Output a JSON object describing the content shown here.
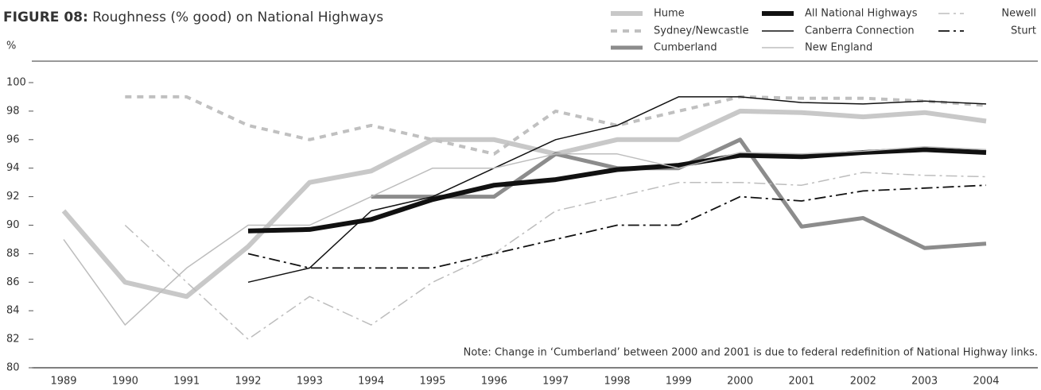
{
  "chart_data": {
    "type": "line",
    "figure_label": "FIGURE 08:",
    "title": "Roughness (% good) on National Highways",
    "y_label": "%",
    "annotation": "Note: Change in ‘Cumberland’ between 2000 and 2001 is due to federal redefinition of National Highway links.",
    "categories": [
      "1989",
      "1990",
      "1991",
      "1992",
      "1993",
      "1994",
      "1995",
      "1996",
      "1997",
      "1998",
      "1999",
      "2000",
      "2001",
      "2002",
      "2003",
      "2004"
    ],
    "ylim": [
      80,
      100
    ],
    "yticks": [
      80,
      82,
      84,
      86,
      88,
      90,
      92,
      94,
      96,
      98,
      100
    ],
    "grid": false,
    "legend": "top-right",
    "series": [
      {
        "name": "Hume",
        "color": "#c8c8c8",
        "width": 6,
        "style": "solid",
        "values": [
          91,
          86,
          85,
          88.5,
          93,
          93.8,
          96,
          96,
          95,
          96,
          96,
          98,
          97.9,
          97.6,
          97.9,
          97.3
        ]
      },
      {
        "name": "Sydney/Newcastle",
        "color": "#c0c0c0",
        "width": 4,
        "style": "dashed",
        "values": [
          null,
          99,
          99,
          97,
          96,
          97,
          96,
          95,
          98,
          97,
          98,
          99,
          98.9,
          98.9,
          98.7,
          98.4
        ]
      },
      {
        "name": "Cumberland",
        "color": "#8c8c8c",
        "width": 5,
        "style": "solid",
        "values": [
          null,
          null,
          null,
          null,
          null,
          92,
          92,
          92,
          95,
          94,
          94,
          96,
          89.9,
          90.5,
          88.4,
          88.7
        ]
      },
      {
        "name": "All National Highways",
        "color": "#111111",
        "width": 6,
        "style": "solid",
        "values": [
          null,
          null,
          null,
          89.6,
          89.7,
          90.4,
          91.8,
          92.8,
          93.2,
          93.9,
          94.2,
          94.9,
          94.8,
          95.1,
          95.3,
          95.1
        ]
      },
      {
        "name": "Canberra Connection",
        "color": "#111111",
        "width": 1.5,
        "style": "solid",
        "values": [
          null,
          null,
          null,
          86,
          87,
          91,
          92,
          94,
          96,
          97,
          99,
          99,
          98.6,
          98.5,
          98.7,
          98.5
        ]
      },
      {
        "name": "New England",
        "color": "#bdbdbd",
        "width": 1.5,
        "style": "solid",
        "values": [
          89,
          83,
          87,
          90,
          90,
          92,
          94,
          94,
          95,
          95,
          94,
          95.1,
          95,
          95.2,
          95.5,
          95.3
        ]
      },
      {
        "name": "Newell",
        "color": "#bdbdbd",
        "width": 1.5,
        "style": "dashdot",
        "values": [
          null,
          90,
          86,
          82,
          85,
          83,
          86,
          88,
          91,
          92,
          93,
          93,
          92.8,
          93.7,
          93.5,
          93.4
        ]
      },
      {
        "name": "Sturt",
        "color": "#111111",
        "width": 1.8,
        "style": "dashdot",
        "values": [
          null,
          null,
          null,
          88,
          87,
          87,
          87,
          88,
          89,
          90,
          90,
          92,
          91.7,
          92.4,
          92.6,
          92.8
        ]
      }
    ]
  }
}
